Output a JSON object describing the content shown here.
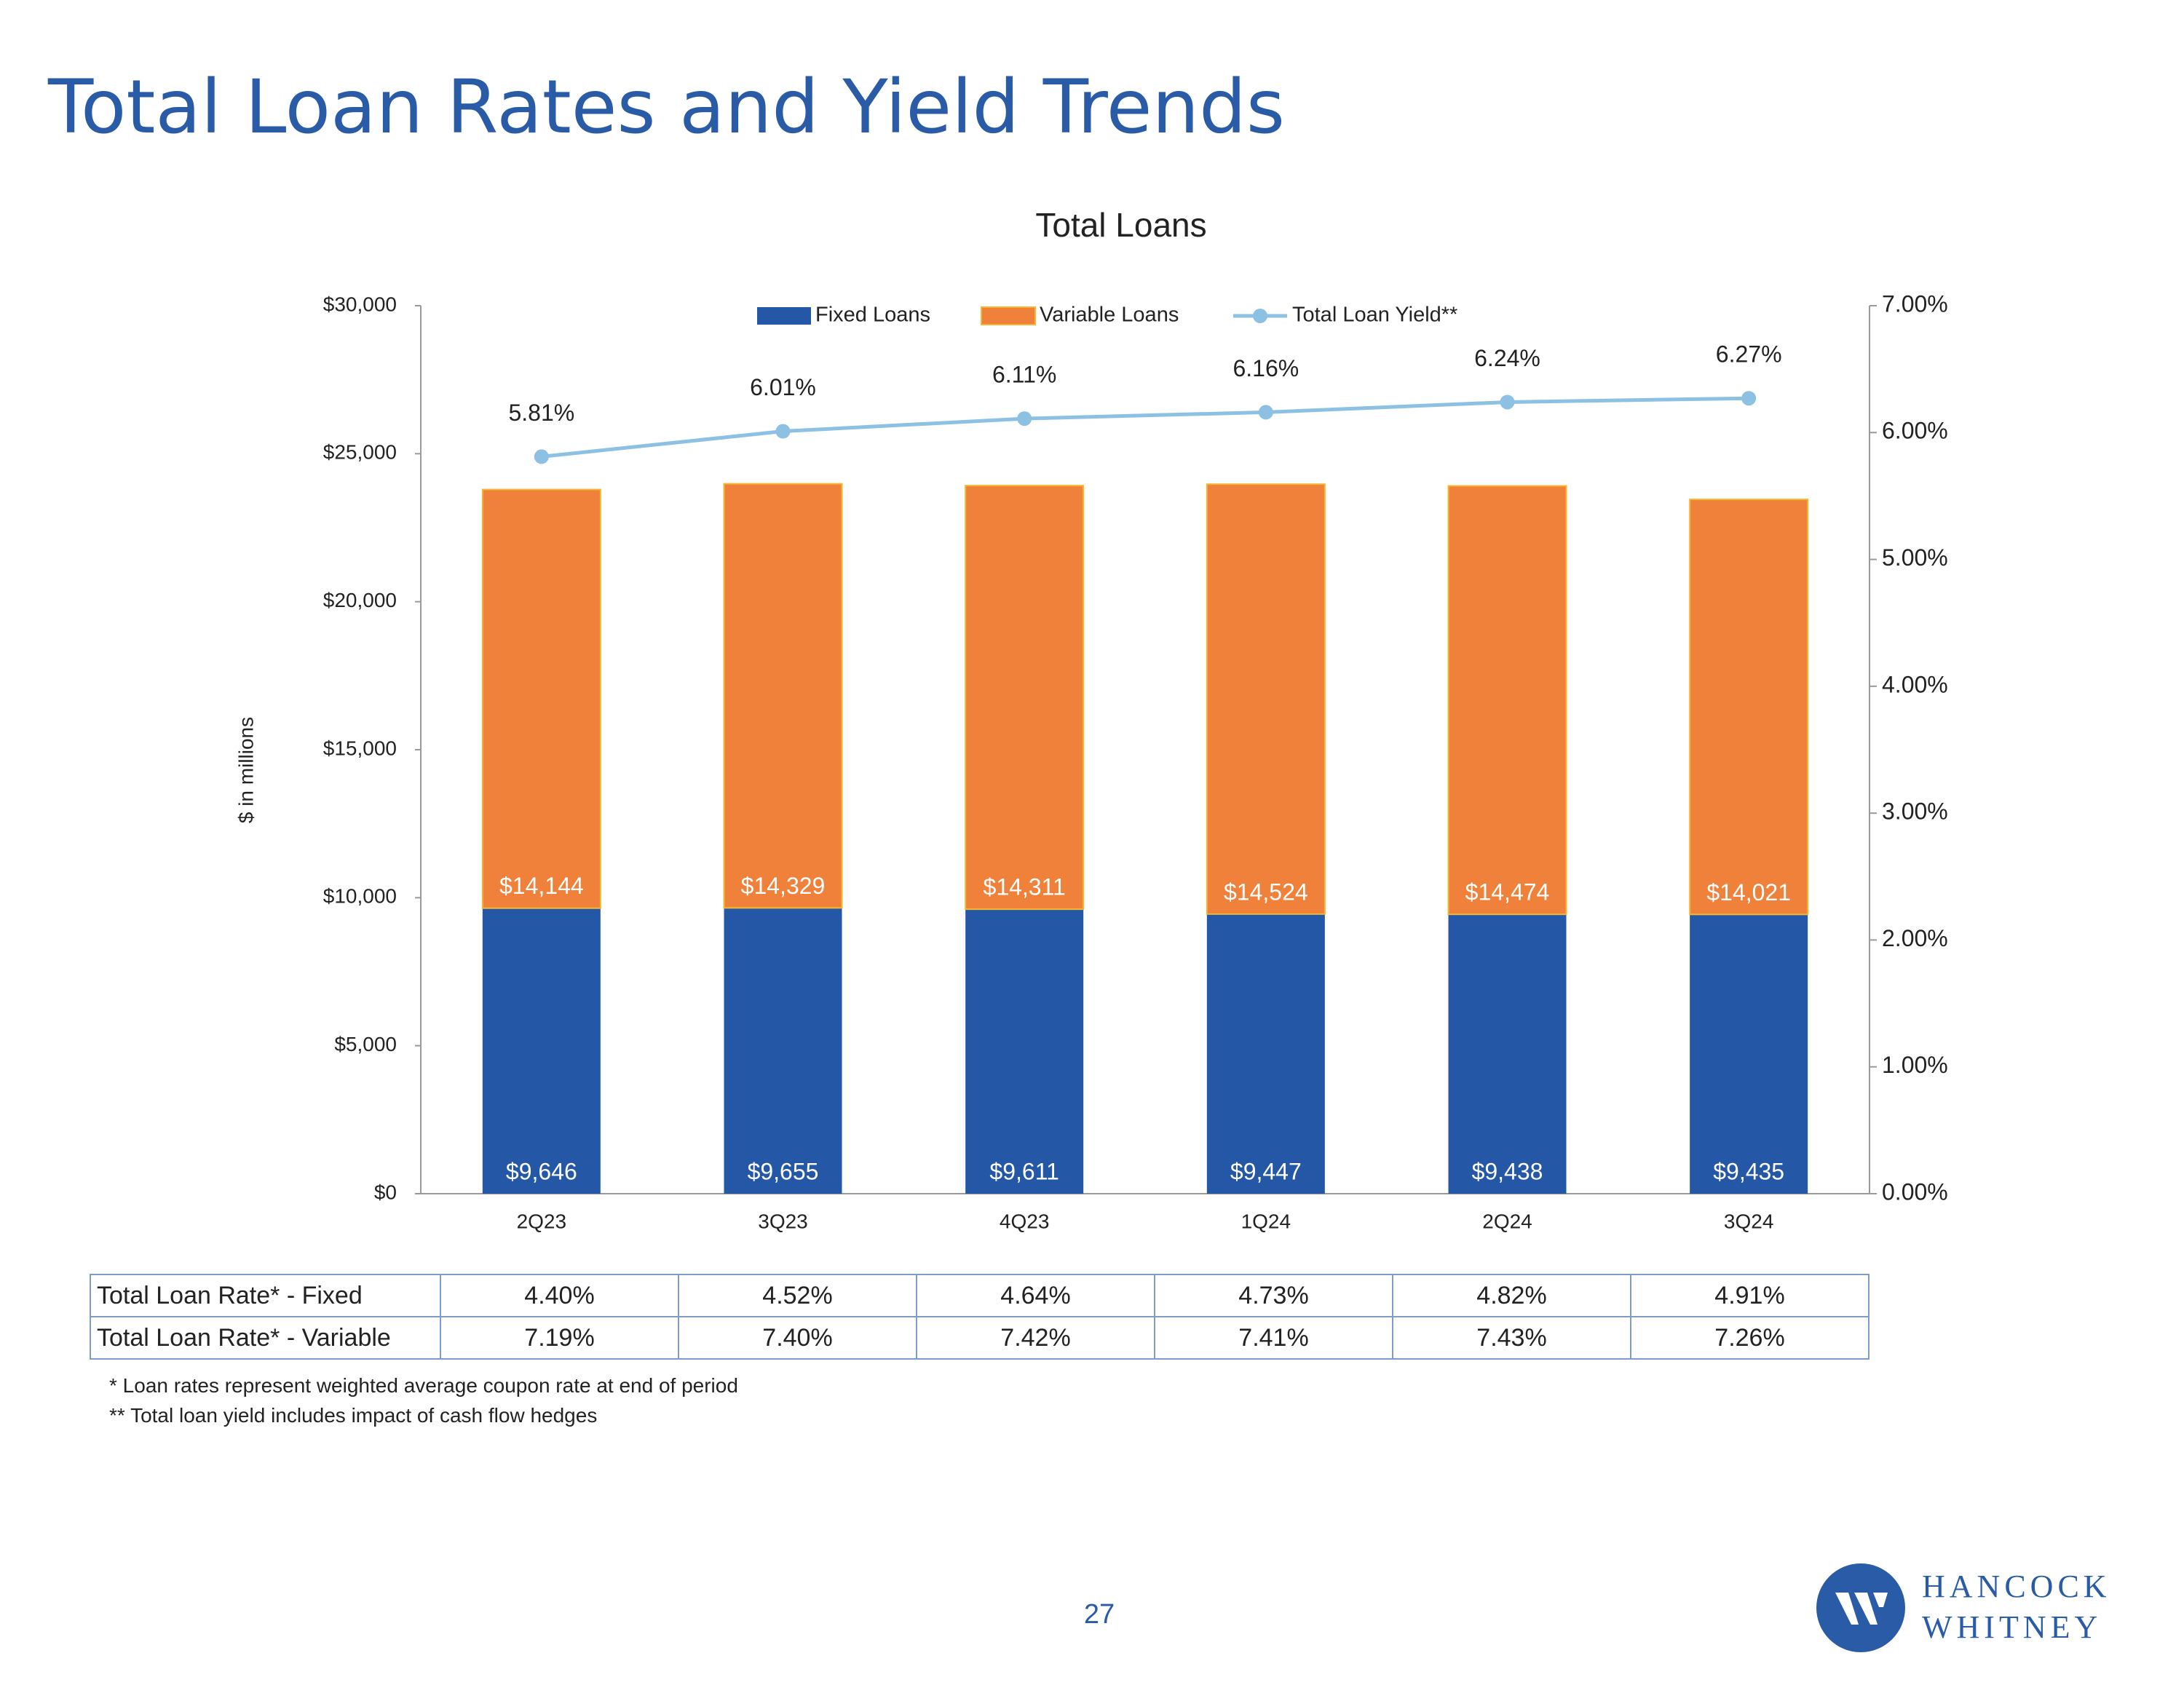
{
  "page": {
    "title": "Total Loan Rates and Yield Trends",
    "page_number": "27"
  },
  "chart_data": {
    "type": "bar",
    "stacked": true,
    "title": "Total Loans",
    "ylabel": "$ in millions",
    "categories": [
      "2Q23",
      "3Q23",
      "4Q23",
      "1Q24",
      "2Q24",
      "3Q24"
    ],
    "series": [
      {
        "name": "Fixed Loans",
        "color": "#2457a6",
        "values": [
          9646,
          9655,
          9611,
          9447,
          9438,
          9435
        ],
        "labels": [
          "$9,646",
          "$9,655",
          "$9,611",
          "$9,447",
          "$9,438",
          "$9,435"
        ]
      },
      {
        "name": "Variable Loans",
        "color": "#f0813a",
        "values": [
          14144,
          14329,
          14311,
          14524,
          14474,
          14021
        ],
        "labels": [
          "$14,144",
          "$14,329",
          "$14,311",
          "$14,524",
          "$14,474",
          "$14,021"
        ]
      }
    ],
    "line_series": {
      "name": "Total Loan Yield**",
      "color": "#8cc1e3",
      "values": [
        5.81,
        6.01,
        6.11,
        6.16,
        6.24,
        6.27
      ],
      "labels": [
        "5.81%",
        "6.01%",
        "6.11%",
        "6.16%",
        "6.24%",
        "6.27%"
      ]
    },
    "ylim": [
      0,
      30000
    ],
    "yticks": [
      0,
      5000,
      10000,
      15000,
      20000,
      25000,
      30000
    ],
    "ytick_labels": [
      "$0",
      "$5,000",
      "$10,000",
      "$15,000",
      "$20,000",
      "$25,000",
      "$30,000"
    ],
    "y2lim": [
      0,
      7
    ],
    "y2ticks": [
      0,
      1,
      2,
      3,
      4,
      5,
      6,
      7
    ],
    "y2tick_labels": [
      "0.00%",
      "1.00%",
      "2.00%",
      "3.00%",
      "4.00%",
      "5.00%",
      "6.00%",
      "7.00%"
    ],
    "legend_position": "top-center",
    "grid": false
  },
  "rates_table": {
    "rows": [
      {
        "label": "Total Loan Rate* - Fixed",
        "values": [
          "4.40%",
          "4.52%",
          "4.64%",
          "4.73%",
          "4.82%",
          "4.91%"
        ]
      },
      {
        "label": "Total Loan Rate* - Variable",
        "values": [
          "7.19%",
          "7.40%",
          "7.42%",
          "7.41%",
          "7.43%",
          "7.26%"
        ]
      }
    ]
  },
  "footnotes": [
    "* Loan rates represent weighted average coupon rate at end of period",
    "** Total loan yield includes impact of cash flow hedges"
  ],
  "logo": {
    "line1": "HANCOCK",
    "line2": "WHITNEY",
    "color": "#2a5ba6"
  }
}
